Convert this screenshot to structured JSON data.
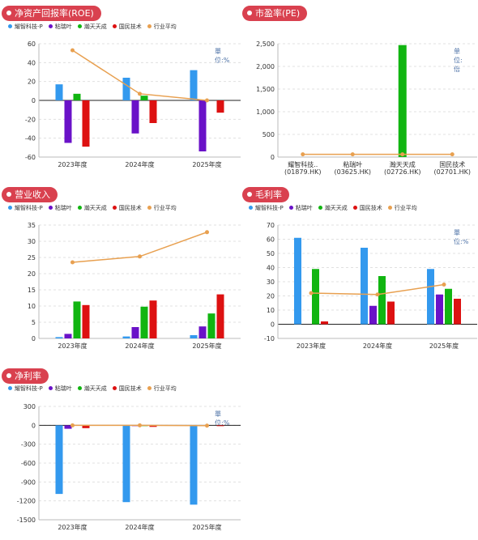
{
  "colors": {
    "series": [
      "#3399ee",
      "#6a12c8",
      "#11b511",
      "#dd1111",
      "#e8a050"
    ],
    "badge": "#d9414f",
    "unit_text": "#4a6fa5",
    "grid": "#e0e0e0"
  },
  "legend": [
    "耀智科技-P",
    "粘瑞叶",
    "瀚天天成",
    "国民技术",
    "行业平均"
  ],
  "panels": [
    {
      "title": "净资产回报率(ROE)",
      "unit": "單位:%",
      "chart_data": {
        "type": "bar",
        "categories": [
          "2023年度",
          "2024年度",
          "2025年度"
        ],
        "ylim": [
          -60,
          60
        ],
        "yticks": [
          -60,
          -40,
          -20,
          0,
          20,
          40,
          60
        ],
        "series": [
          {
            "name": "耀智科技-P",
            "values": [
              17,
              24,
              32
            ]
          },
          {
            "name": "粘瑞叶",
            "values": [
              -45,
              -35,
              -54
            ]
          },
          {
            "name": "瀚天天成",
            "values": [
              7,
              5,
              0
            ]
          },
          {
            "name": "国民技术",
            "values": [
              -49,
              -24,
              -13
            ]
          }
        ],
        "line": {
          "name": "行业平均",
          "values": [
            53,
            7,
            0
          ]
        }
      }
    },
    {
      "title": "市盈率(PE)",
      "unit": "单位:倍",
      "chart_data": {
        "type": "bar",
        "categories": [
          "耀智科技..(01879.HK)",
          "粘瑞叶(03625.HK)",
          "瀚天天成(02726.HK)",
          "国民技术(02701.HK)"
        ],
        "ylim": [
          0,
          2500
        ],
        "yticks": [
          "0",
          "500",
          "1,000",
          "1,500",
          "2,000",
          "2,500"
        ],
        "series": [
          {
            "name": "瀚天天成",
            "category_index": 2,
            "value": 2470
          }
        ],
        "line": {
          "name": "行业平均",
          "values": [
            60,
            60,
            60,
            60
          ]
        }
      }
    },
    {
      "title": "营业收入",
      "unit": "",
      "chart_data": {
        "type": "bar",
        "categories": [
          "2023年度",
          "2024年度",
          "2025年度"
        ],
        "ylim": [
          0,
          35
        ],
        "yticks": [
          0,
          5,
          10,
          15,
          20,
          25,
          30,
          35
        ],
        "series": [
          {
            "name": "耀智科技-P",
            "values": [
              0.4,
              0.6,
              1.0
            ]
          },
          {
            "name": "粘瑞叶",
            "values": [
              1.4,
              3.5,
              3.7
            ]
          },
          {
            "name": "瀚天天成",
            "values": [
              11.4,
              9.8,
              7.7
            ]
          },
          {
            "name": "国民技术",
            "values": [
              10.3,
              11.7,
              13.6
            ]
          }
        ],
        "line": {
          "name": "行业平均",
          "values": [
            23.5,
            25.3,
            32.8
          ]
        }
      }
    },
    {
      "title": "毛利率",
      "unit": "單位:%",
      "chart_data": {
        "type": "bar",
        "categories": [
          "2023年度",
          "2024年度",
          "2025年度"
        ],
        "ylim": [
          -10,
          70
        ],
        "yticks": [
          -10,
          0,
          10,
          20,
          30,
          40,
          50,
          60,
          70
        ],
        "series": [
          {
            "name": "耀智科技-P",
            "values": [
              61,
              54,
              39
            ]
          },
          {
            "name": "粘瑞叶",
            "values": [
              0,
              13,
              21
            ]
          },
          {
            "name": "瀚天天成",
            "values": [
              39,
              34,
              25
            ]
          },
          {
            "name": "国民技术",
            "values": [
              2,
              16,
              18
            ]
          }
        ],
        "line": {
          "name": "行业平均",
          "values": [
            22,
            21,
            28
          ]
        }
      }
    },
    {
      "title": "净利率",
      "unit": "單位:%",
      "chart_data": {
        "type": "bar",
        "categories": [
          "2023年度",
          "2024年度",
          "2025年度"
        ],
        "ylim": [
          -1500,
          300
        ],
        "yticks": [
          -1500,
          -1200,
          -900,
          -600,
          -300,
          0,
          300
        ],
        "series": [
          {
            "name": "耀智科技-P",
            "values": [
              -1090,
              -1220,
              -1260
            ]
          },
          {
            "name": "粘瑞叶",
            "values": [
              -55,
              -5,
              0
            ]
          },
          {
            "name": "瀚天天成",
            "values": [
              0,
              -5,
              0
            ]
          },
          {
            "name": "国民技术",
            "values": [
              -45,
              -25,
              -5
            ]
          }
        ],
        "line": {
          "name": "行业平均",
          "values": [
            0,
            0,
            -5
          ]
        }
      }
    }
  ]
}
